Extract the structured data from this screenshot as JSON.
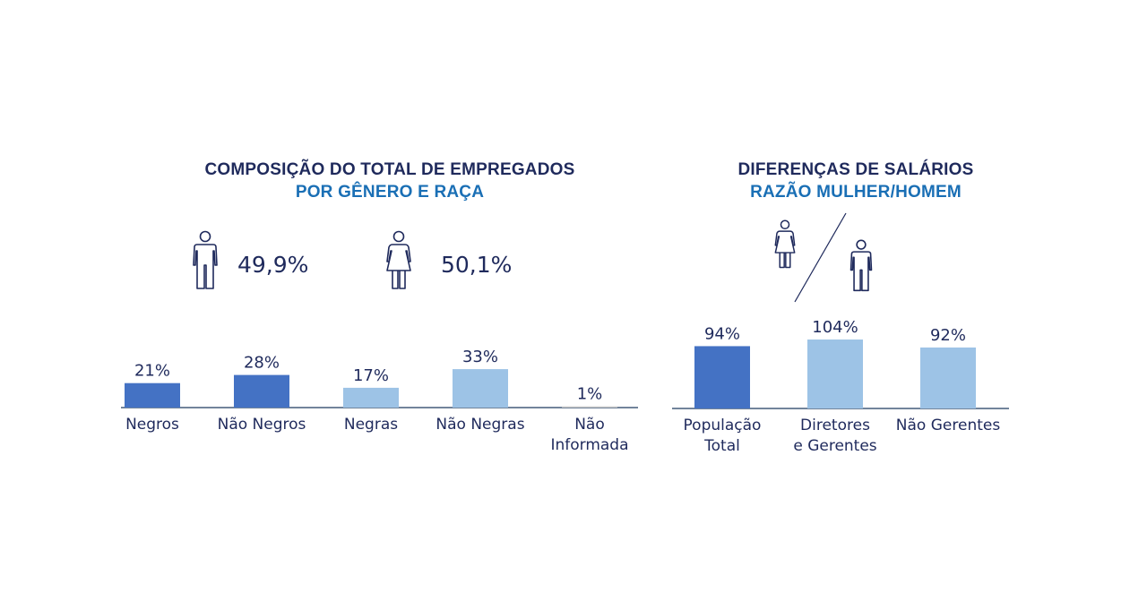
{
  "left_panel": {
    "title_line1": "COMPOSIÇÃO DO TOTAL DE EMPREGADOS",
    "title_line2": "POR GÊNERO E RAÇA",
    "gender": {
      "men": {
        "icon": "man-icon",
        "value": "49,9%"
      },
      "women": {
        "icon": "woman-icon",
        "value": "50,1%"
      }
    }
  },
  "right_panel": {
    "title_line1": "DIFERENÇAS DE SALÁRIOS",
    "title_line2": "RAZÃO MULHER/HOMEM",
    "icons": [
      "woman-icon",
      "slash-divider",
      "man-icon"
    ]
  },
  "colors": {
    "dark_blue": "#4472c4",
    "light_blue": "#9dc3e6",
    "gray": "#c9c9c9",
    "axis": "#1f3a5f",
    "title_dark": "#1f2a5c",
    "title_blue": "#1a6fb5"
  },
  "chart_data": [
    {
      "type": "bar",
      "title": "COMPOSIÇÃO DO TOTAL DE EMPREGADOS POR GÊNERO E RAÇA",
      "categories": [
        [
          "Negros"
        ],
        [
          "Não Negros"
        ],
        [
          "Negras"
        ],
        [
          "Não Negras"
        ],
        [
          "Não",
          "Informada"
        ]
      ],
      "values": [
        21,
        28,
        17,
        33,
        1
      ],
      "value_labels": [
        "21%",
        "28%",
        "17%",
        "33%",
        "1%"
      ],
      "bar_colors": [
        "#4472c4",
        "#4472c4",
        "#9dc3e6",
        "#9dc3e6",
        "#c9c9c9"
      ],
      "ylim": [
        0,
        40
      ],
      "xlabel": "",
      "ylabel": "",
      "grid": false
    },
    {
      "type": "bar",
      "title": "DIFERENÇAS DE SALÁRIOS RAZÃO MULHER/HOMEM",
      "categories": [
        [
          "População",
          "Total"
        ],
        [
          "Diretores",
          "e Gerentes"
        ],
        [
          "Não Gerentes"
        ]
      ],
      "values": [
        94,
        104,
        92
      ],
      "value_labels": [
        "94%",
        "104%",
        "92%"
      ],
      "bar_colors": [
        "#4472c4",
        "#9dc3e6",
        "#9dc3e6"
      ],
      "ylim": [
        0,
        130
      ],
      "xlabel": "",
      "ylabel": "",
      "grid": false
    }
  ]
}
